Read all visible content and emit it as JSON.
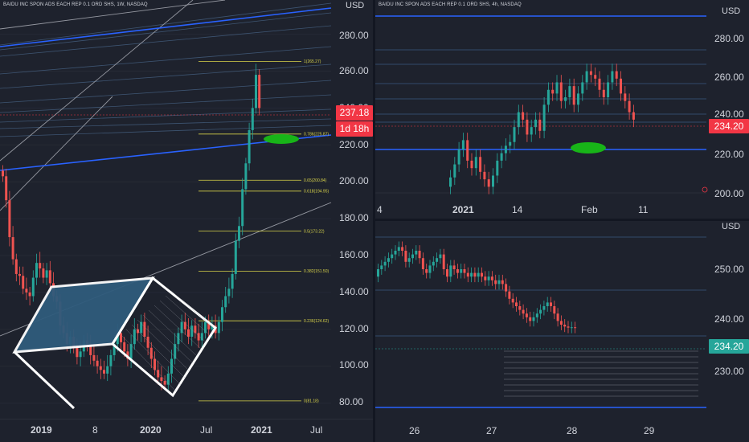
{
  "left": {
    "title": "BAIDU INC SPON ADS EACH REP 0.1 ORD SHS, 1W, NASDAQ",
    "currency": "USD",
    "y_labels": [
      "280.00",
      "260.00",
      "240.00",
      "220.00",
      "200.00",
      "180.00",
      "160.00",
      "140.00",
      "120.00",
      "100.00",
      "80.00"
    ],
    "x_labels": [
      "2019",
      "8",
      "2020",
      "Jul",
      "2021",
      "Jul"
    ],
    "price_tag": "237.18",
    "countdown_tag": "1d 18h",
    "fib_labels": [
      "1(265.27)",
      "0.786(225.87)",
      "0.65(200.84)",
      "0.618(194.95)",
      "0.5(173.22)",
      "0.382(151.50)",
      "0.236(124.62)",
      "0(81.18)"
    ]
  },
  "top_right": {
    "title": "BAIDU INC SPON ADS EACH REP 0.1 ORD SHS, 4h, NASDAQ",
    "currency": "USD",
    "y_labels": [
      "280.00",
      "260.00",
      "240.00",
      "220.00",
      "200.00"
    ],
    "x_labels": [
      "4",
      "2021",
      "14",
      "Feb",
      "11"
    ],
    "price_tag": "234.20"
  },
  "bottom_right": {
    "currency": "USD",
    "y_labels": [
      "250.00",
      "240.00",
      "230.00"
    ],
    "x_labels": [
      "26",
      "27",
      "28",
      "29"
    ],
    "price_tag": "234.20"
  },
  "colors": {
    "background": "#1e222d",
    "up_candle": "#26a69a",
    "down_candle": "#ef5350",
    "trend_line": "#2962ff",
    "fib_line": "#d8d34a",
    "ellipse": "#18b418",
    "price_tag": "#f23645",
    "price_tag_green": "#26a69a",
    "shape_fill": "#2f5b7c"
  }
}
